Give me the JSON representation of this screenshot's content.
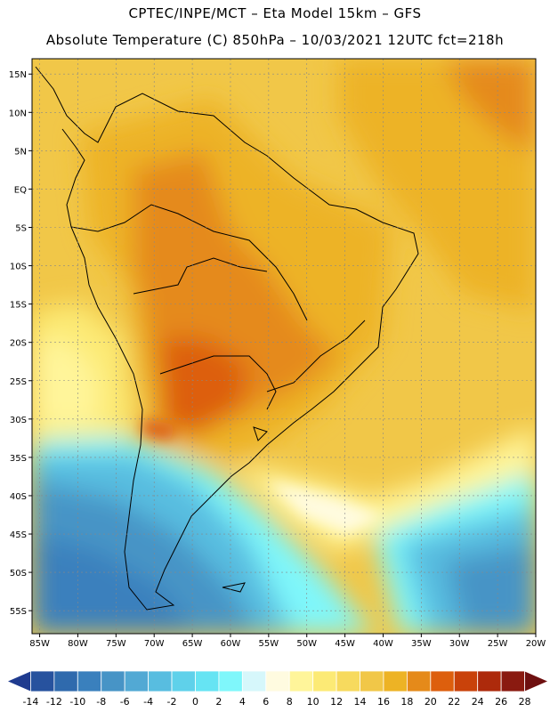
{
  "header": {
    "line1": "CPTEC/INPE/MCT –  Eta Model 15km – GFS",
    "line2": "Absolute Temperature (C) 850hPa – 10/03/2021 12UTC fct=218h"
  },
  "map": {
    "lat_labels": [
      "15N",
      "10N",
      "5N",
      "EQ",
      "5S",
      "10S",
      "15S",
      "20S",
      "25S",
      "30S",
      "35S",
      "40S",
      "45S",
      "50S",
      "55S"
    ],
    "lon_labels": [
      "85W",
      "80W",
      "75W",
      "70W",
      "65W",
      "60W",
      "55W",
      "50W",
      "45W",
      "40W",
      "35W",
      "30W",
      "25W",
      "20W"
    ],
    "lat_range": [
      -58,
      17
    ],
    "lon_range": [
      -86,
      -20
    ],
    "grid": true
  },
  "colorbar": {
    "labels": [
      "-14",
      "-12",
      "-10",
      "-8",
      "-6",
      "-4",
      "-2",
      "0",
      "2",
      "4",
      "6",
      "8",
      "10",
      "12",
      "14",
      "16",
      "18",
      "20",
      "22",
      "24",
      "26",
      "28"
    ],
    "colors": [
      "#1f3b8f",
      "#27529e",
      "#2f6aad",
      "#3a80bd",
      "#4794c6",
      "#52a9d4",
      "#58bde0",
      "#5fd1ea",
      "#66e4f3",
      "#7ff7fb",
      "#d6f7fb",
      "#fffbe0",
      "#fff59a",
      "#fcea75",
      "#f7da5e",
      "#f1c748",
      "#edb325",
      "#e58a1a",
      "#dd5f0d",
      "#c9420a",
      "#ad2a0b",
      "#8a1a10",
      "#6e1010"
    ]
  }
}
